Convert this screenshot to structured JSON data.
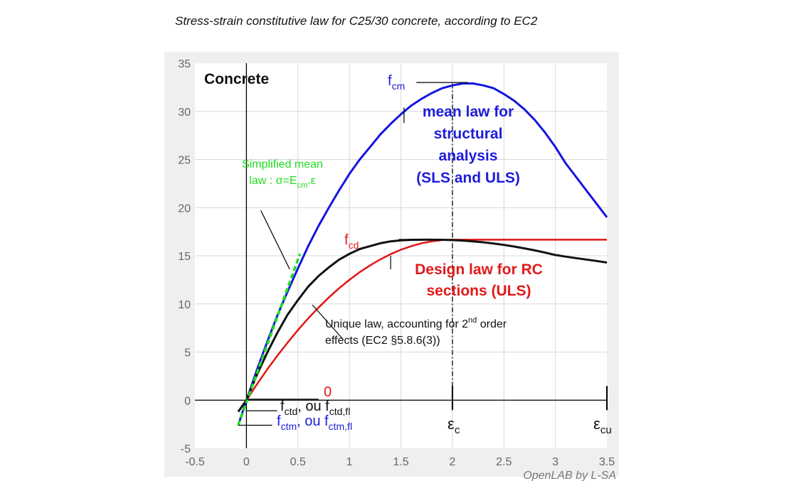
{
  "header": {
    "title": "Stress-strain constitutive law for C25/30 concrete, according  to EC2"
  },
  "credit": "OpenLAB by L-SA",
  "colors": {
    "mean": "#1515e0",
    "design": "#e01515",
    "unique": "#111111",
    "simplified": "#22dd22",
    "panel": "#efefef",
    "grid": "#d8d8d8"
  },
  "chart_data": {
    "type": "line",
    "title": "Stress-strain constitutive law for C25/30 concrete, according  to EC2",
    "panel_label": "Concrete",
    "xlim": [
      -0.5,
      3.5
    ],
    "ylim": [
      -5,
      35
    ],
    "xticks": [
      -0.5,
      0,
      0.5,
      1,
      1.5,
      2,
      2.5,
      3,
      3.5
    ],
    "yticks": [
      -5,
      0,
      5,
      10,
      15,
      20,
      25,
      30,
      35
    ],
    "xtick_labels": [
      "-0.5",
      "0",
      "0.5",
      "1",
      "1.5",
      "2",
      "2.5",
      "3",
      "3.5"
    ],
    "ytick_labels": [
      "-5",
      "0",
      "5",
      "10",
      "15",
      "20",
      "25",
      "30",
      "35"
    ],
    "grid": true,
    "series": [
      {
        "name": "mean law for structural analysis (SLS and ULS)",
        "x": [
          -0.08,
          0,
          0.1,
          0.2,
          0.3,
          0.4,
          0.5,
          0.6,
          0.7,
          0.8,
          0.9,
          1.0,
          1.1,
          1.2,
          1.3,
          1.4,
          1.5,
          1.6,
          1.7,
          1.8,
          1.9,
          2.0,
          2.1,
          2.2,
          2.3,
          2.4,
          2.5,
          2.6,
          2.7,
          2.8,
          2.9,
          3.0,
          3.1,
          3.2,
          3.3,
          3.4,
          3.5
        ],
        "y": [
          -2.6,
          0,
          3.1,
          6.0,
          8.8,
          11.3,
          13.7,
          16.0,
          18.1,
          20.0,
          21.8,
          23.5,
          25.0,
          26.3,
          27.6,
          28.7,
          29.7,
          30.6,
          31.3,
          31.9,
          32.4,
          32.7,
          32.9,
          32.9,
          32.7,
          32.4,
          31.8,
          31.1,
          30.2,
          29.1,
          27.8,
          26.3,
          24.6,
          23.2,
          21.8,
          20.4,
          19.0
        ]
      },
      {
        "name": "Design law for RC sections (ULS)",
        "x": [
          0,
          0.1,
          0.2,
          0.3,
          0.4,
          0.5,
          0.6,
          0.7,
          0.8,
          0.9,
          1.0,
          1.1,
          1.2,
          1.3,
          1.4,
          1.5,
          1.6,
          1.7,
          1.8,
          1.9,
          2.0,
          2.5,
          3.0,
          3.5
        ],
        "y": [
          0,
          1.63,
          3.17,
          4.62,
          5.99,
          7.29,
          8.5,
          9.63,
          10.67,
          11.63,
          12.5,
          13.3,
          14.0,
          14.62,
          15.17,
          15.63,
          16.0,
          16.3,
          16.5,
          16.63,
          16.67,
          16.67,
          16.67,
          16.67
        ]
      },
      {
        "name": "Unique law, accounting for 2nd order effects (EC2 §5.8.6(3))",
        "x": [
          -0.08,
          0,
          0.1,
          0.2,
          0.3,
          0.4,
          0.5,
          0.6,
          0.7,
          0.8,
          0.9,
          1.0,
          1.1,
          1.2,
          1.3,
          1.4,
          1.5,
          1.6,
          1.7,
          1.8,
          1.9,
          2.0,
          2.1,
          2.2,
          2.3,
          2.4,
          2.5,
          2.6,
          2.7,
          2.8,
          2.9,
          3.0,
          3.1,
          3.2,
          3.3,
          3.4,
          3.5
        ],
        "y": [
          -1.2,
          0,
          2.6,
          4.9,
          7.0,
          8.9,
          10.4,
          11.8,
          12.9,
          13.8,
          14.6,
          15.2,
          15.7,
          16.0,
          16.3,
          16.5,
          16.6,
          16.65,
          16.67,
          16.67,
          16.66,
          16.63,
          16.58,
          16.5,
          16.4,
          16.28,
          16.13,
          15.96,
          15.77,
          15.56,
          15.33,
          15.08,
          14.91,
          14.76,
          14.61,
          14.46,
          14.3
        ]
      },
      {
        "name": "Simplified mean law : σ=Ecm.ε",
        "x": [
          -0.08,
          0.52
        ],
        "y": [
          -2.6,
          15.2
        ]
      }
    ],
    "vline_x": 2.0,
    "annotations": {
      "fcm": {
        "base": "f",
        "sub": "cm"
      },
      "fcd": {
        "base": "f",
        "sub": "cd"
      },
      "zero": "0",
      "fctd": {
        "pre": "",
        "base": "f",
        "sub": "ctd",
        "mid": ", ou f",
        "sub2": "ctd,fl"
      },
      "fctm": {
        "base": "f",
        "sub": "ctm",
        "mid": ", ou f",
        "sub2": "ctm,fl"
      },
      "eps_c": {
        "base": "ε",
        "sub": "c"
      },
      "eps_cu": {
        "base": "ε",
        "sub": "cu"
      },
      "mean_label": [
        "mean law for",
        "structural",
        "analysis",
        "(SLS and ULS)"
      ],
      "design_label": [
        "Design law for RC",
        "sections (ULS)"
      ],
      "simplified_label": [
        "Simplified mean",
        "law : σ=E"
      ],
      "simplified_sub": "cm",
      "simplified_end": ".ε",
      "unique_line1_a": "Unique law, accounting for 2",
      "unique_line1_sup": "nd",
      "unique_line1_b": " order",
      "unique_line2": "effects (EC2 §5.8.6(3))"
    }
  }
}
